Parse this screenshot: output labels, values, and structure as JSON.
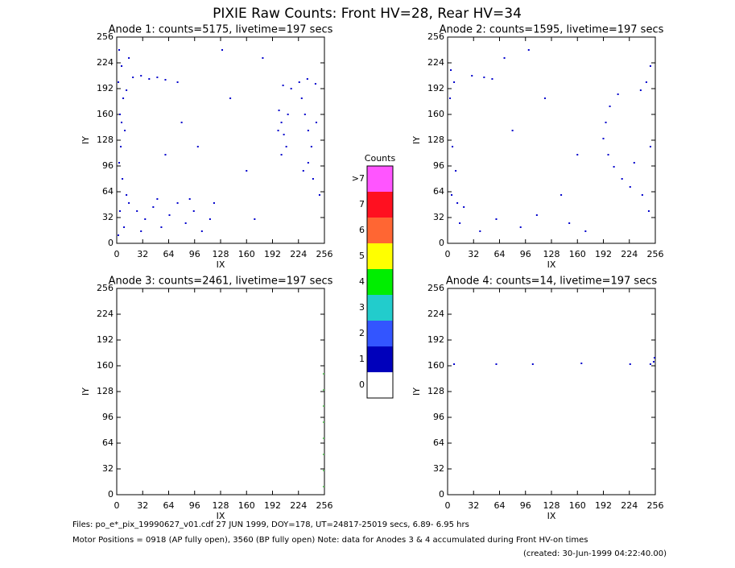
{
  "title": "PIXIE Raw Counts:  Front HV=28, Rear HV=34",
  "footer": {
    "files": "Files: po_e*_pix_19990627_v01.cdf    27 JUN 1999, DOY=178, UT=24817-25019 secs,  6.89- 6.95 hrs",
    "motor": "Motor Positions = 0918 (AP fully open), 3560 (BP fully open)    Note: data for Anodes 3 & 4 accumulated during Front HV-on times",
    "created": "(created: 30-Jun-1999 04:22:40.00)"
  },
  "chart_data": [
    {
      "type": "scatter",
      "title": "Anode 1: counts=5175, livetime=197 secs",
      "xlabel": "IX",
      "ylabel": "IY",
      "color": "#0000cc",
      "xlim": [
        0,
        256
      ],
      "ylim": [
        0,
        256
      ],
      "xticks": [
        0,
        32,
        64,
        96,
        128,
        160,
        192,
        224,
        256
      ],
      "yticks": [
        0,
        32,
        64,
        96,
        128,
        160,
        192,
        224,
        256
      ],
      "x": [
        3,
        6,
        2,
        8,
        4,
        10,
        5,
        3,
        7,
        12,
        4,
        9,
        2,
        15,
        12,
        6,
        20,
        30,
        40,
        50,
        60,
        75,
        205,
        215,
        225,
        235,
        245,
        200,
        203,
        206,
        209,
        203,
        211,
        199,
        228,
        232,
        236,
        240,
        236,
        242,
        230,
        246,
        250,
        15,
        25,
        35,
        45,
        55,
        65,
        75,
        85,
        95,
        105,
        115,
        30,
        50,
        90,
        120,
        100,
        140,
        160,
        180,
        80,
        130,
        170,
        60
      ],
      "y": [
        240,
        220,
        200,
        180,
        160,
        140,
        120,
        100,
        80,
        60,
        40,
        20,
        10,
        230,
        190,
        150,
        206,
        208,
        204,
        206,
        203,
        200,
        196,
        192,
        200,
        204,
        198,
        165,
        150,
        135,
        120,
        110,
        160,
        140,
        180,
        160,
        140,
        120,
        100,
        80,
        90,
        150,
        60,
        50,
        40,
        30,
        45,
        20,
        35,
        50,
        25,
        40,
        15,
        30,
        15,
        55,
        55,
        50,
        120,
        180,
        90,
        230,
        150,
        240,
        30,
        110
      ]
    },
    {
      "type": "scatter",
      "title": "Anode 2: counts=1595, livetime=197 secs",
      "xlabel": "IX",
      "ylabel": "IY",
      "color": "#0000cc",
      "xlim": [
        0,
        256
      ],
      "ylim": [
        0,
        256
      ],
      "xticks": [
        0,
        32,
        64,
        96,
        128,
        160,
        192,
        224,
        256
      ],
      "yticks": [
        0,
        32,
        64,
        96,
        128,
        160,
        192,
        224,
        256
      ],
      "x": [
        4,
        8,
        3,
        6,
        10,
        5,
        12,
        20,
        30,
        45,
        55,
        70,
        210,
        200,
        195,
        192,
        198,
        205,
        215,
        225,
        240,
        248,
        245,
        250,
        238,
        230,
        250,
        15,
        40,
        60,
        90,
        110,
        150,
        170,
        120,
        100,
        160,
        80,
        140
      ],
      "y": [
        215,
        200,
        180,
        120,
        90,
        60,
        50,
        45,
        208,
        206,
        204,
        230,
        185,
        170,
        150,
        130,
        110,
        95,
        80,
        70,
        60,
        40,
        200,
        220,
        190,
        100,
        120,
        25,
        15,
        30,
        20,
        35,
        25,
        15,
        180,
        240,
        110,
        140,
        60
      ]
    },
    {
      "type": "scatter",
      "title": "Anode 3: counts=2461, livetime=197 secs",
      "xlabel": "IX",
      "ylabel": "IY",
      "color": "#66bb66",
      "xlim": [
        0,
        256
      ],
      "ylim": [
        0,
        256
      ],
      "xticks": [
        0,
        32,
        64,
        96,
        128,
        160,
        192,
        224,
        256
      ],
      "yticks": [
        0,
        32,
        64,
        96,
        128,
        160,
        192,
        224,
        256
      ],
      "x": [
        255,
        255,
        255,
        255,
        255,
        255,
        255,
        255
      ],
      "y": [
        10,
        30,
        50,
        70,
        90,
        110,
        130,
        150
      ]
    },
    {
      "type": "scatter",
      "title": "Anode 4: counts=14, livetime=197 secs",
      "xlabel": "IX",
      "ylabel": "IY",
      "color": "#0000cc",
      "xlim": [
        0,
        256
      ],
      "ylim": [
        0,
        256
      ],
      "xticks": [
        0,
        32,
        64,
        96,
        128,
        160,
        192,
        224,
        256
      ],
      "yticks": [
        0,
        32,
        64,
        96,
        128,
        160,
        192,
        224,
        256
      ],
      "x": [
        8,
        60,
        105,
        165,
        225,
        250,
        254,
        255
      ],
      "y": [
        162,
        162,
        162,
        163,
        162,
        162,
        165,
        170
      ]
    },
    {
      "type": "colorbar",
      "title": "Counts",
      "categories": [
        ">7",
        "7",
        "6",
        "5",
        "4",
        "3",
        "2",
        "1",
        "0"
      ],
      "colors": [
        "#ff55ff",
        "#ff1020",
        "#ff6633",
        "#ffff00",
        "#00ee00",
        "#22cccc",
        "#3355ff",
        "#0000bb",
        "#ffffff"
      ]
    }
  ]
}
